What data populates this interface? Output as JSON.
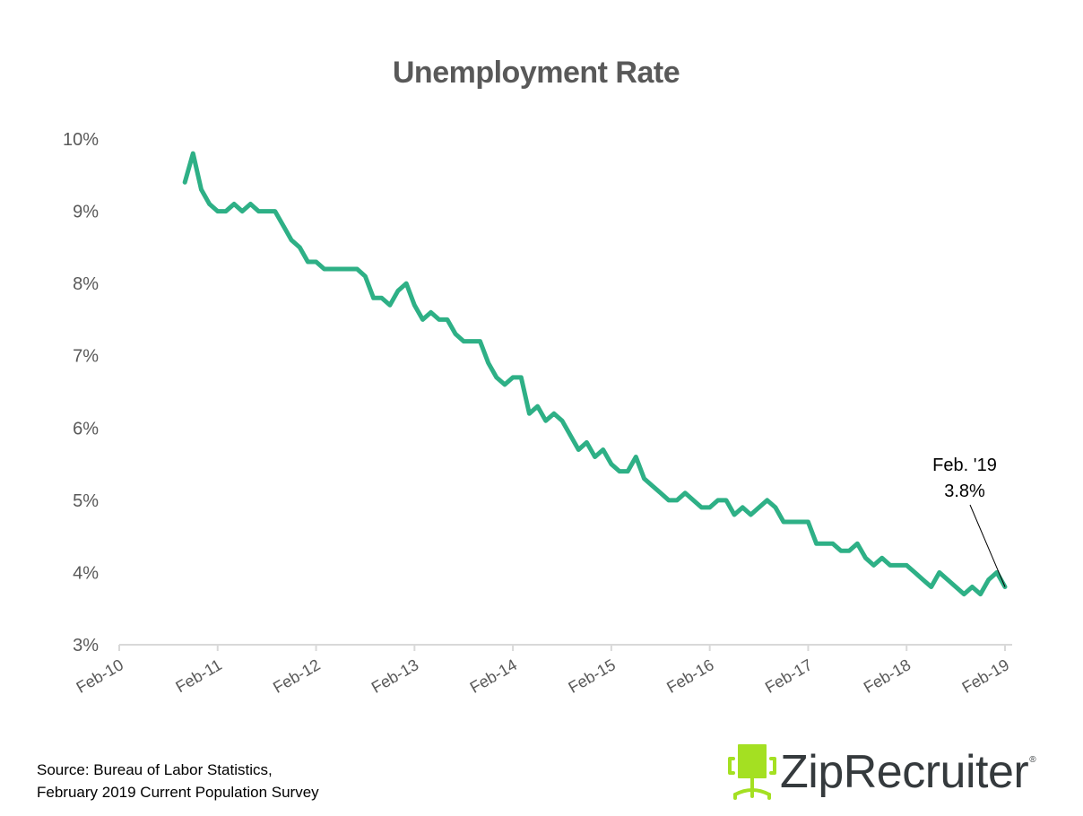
{
  "chart_data": {
    "type": "line",
    "title": "Unemployment Rate",
    "xlabel": "",
    "ylabel": "",
    "ylim": [
      3,
      10
    ],
    "yticks": [
      "3%",
      "4%",
      "5%",
      "6%",
      "7%",
      "8%",
      "9%",
      "10%"
    ],
    "xticks": [
      "Feb-10",
      "Feb-11",
      "Feb-12",
      "Feb-13",
      "Feb-14",
      "Feb-15",
      "Feb-16",
      "Feb-17",
      "Feb-18",
      "Feb-19"
    ],
    "grid": false,
    "legend": null,
    "series": [
      {
        "name": "Unemployment Rate",
        "color": "#2EB086",
        "start": "Oct-10",
        "end": "Feb-19",
        "frequency": "monthly",
        "values": [
          9.4,
          9.8,
          9.3,
          9.1,
          9.0,
          9.0,
          9.1,
          9.0,
          9.1,
          9.0,
          9.0,
          9.0,
          8.8,
          8.6,
          8.5,
          8.3,
          8.3,
          8.2,
          8.2,
          8.2,
          8.2,
          8.2,
          8.1,
          7.8,
          7.8,
          7.7,
          7.9,
          8.0,
          7.7,
          7.5,
          7.6,
          7.5,
          7.5,
          7.3,
          7.2,
          7.2,
          7.2,
          6.9,
          6.7,
          6.6,
          6.7,
          6.7,
          6.2,
          6.3,
          6.1,
          6.2,
          6.1,
          5.9,
          5.7,
          5.8,
          5.6,
          5.7,
          5.5,
          5.4,
          5.4,
          5.6,
          5.3,
          5.2,
          5.1,
          5.0,
          5.0,
          5.1,
          5.0,
          4.9,
          4.9,
          5.0,
          5.0,
          4.8,
          4.9,
          4.8,
          4.9,
          5.0,
          4.9,
          4.7,
          4.7,
          4.7,
          4.7,
          4.4,
          4.4,
          4.4,
          4.3,
          4.3,
          4.4,
          4.2,
          4.1,
          4.2,
          4.1,
          4.1,
          4.1,
          4.0,
          3.9,
          3.8,
          4.0,
          3.9,
          3.8,
          3.7,
          3.8,
          3.7,
          3.9,
          4.0,
          3.8
        ]
      }
    ],
    "annotations": [
      {
        "line1": "Feb. '19",
        "line2": "3.8%",
        "points_to": {
          "x": "Feb-19",
          "y": 3.8
        }
      }
    ]
  },
  "source": {
    "line1": "Source: Bureau of Labor Statistics,",
    "line2": "February 2019 Current  Population Survey"
  },
  "logo": {
    "icon": "office-chair-icon",
    "wordmark": "ZipRecruiter",
    "registered": "®",
    "icon_color": "#A4E022",
    "text_color": "#353A3D"
  },
  "colors": {
    "line": "#2EB086",
    "axis": "#D9D9D9",
    "tick_text": "#595959",
    "title": "#595959"
  }
}
